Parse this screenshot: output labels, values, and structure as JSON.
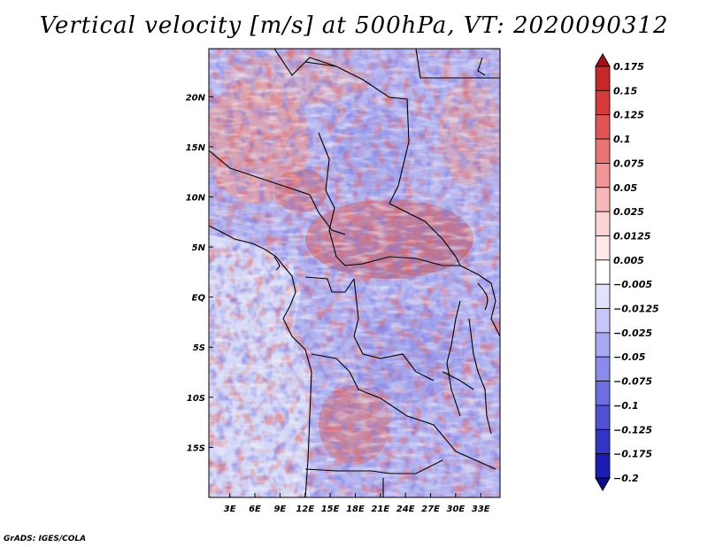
{
  "title": "Vertical velocity [m/s] at 500hPa, VT: 2020090312",
  "credit": "GrADS: IGES/COLA",
  "map": {
    "lat_labels": [
      "20N",
      "15N",
      "10N",
      "5N",
      "EQ",
      "5S",
      "10S",
      "15S"
    ],
    "lat_values": [
      20,
      15,
      10,
      5,
      0,
      -5,
      -10,
      -15
    ],
    "lon_labels": [
      "3E",
      "6E",
      "9E",
      "12E",
      "15E",
      "18E",
      "21E",
      "24E",
      "27E",
      "30E",
      "33E"
    ],
    "lon_values": [
      3,
      6,
      9,
      12,
      15,
      18,
      21,
      24,
      27,
      30,
      33
    ],
    "lat_range": [
      -20,
      24.8
    ],
    "lon_range": [
      0.5,
      35.3
    ],
    "variable": "vertical velocity",
    "units": "m/s",
    "level": "500hPa",
    "valid_time": "2020090312"
  },
  "colorbar": {
    "labels": [
      "0.175",
      "0.15",
      "0.125",
      "0.1",
      "0.075",
      "0.05",
      "0.025",
      "0.0125",
      "0.005",
      "−0.005",
      "−0.0125",
      "−0.025",
      "−0.05",
      "−0.075",
      "−0.1",
      "−0.125",
      "−0.175",
      "−0.2"
    ],
    "colors": [
      "#a50f15",
      "#c62828",
      "#d73a3a",
      "#e05656",
      "#e87575",
      "#f09696",
      "#f6b8b8",
      "#fbd4d4",
      "#fde9e9",
      "#ffffff",
      "#e2e2ff",
      "#c6c6fb",
      "#a8a8f3",
      "#8b8bea",
      "#6e6ee0",
      "#5050d4",
      "#3434c4",
      "#1c1cae",
      "#0b0b8c"
    ]
  }
}
